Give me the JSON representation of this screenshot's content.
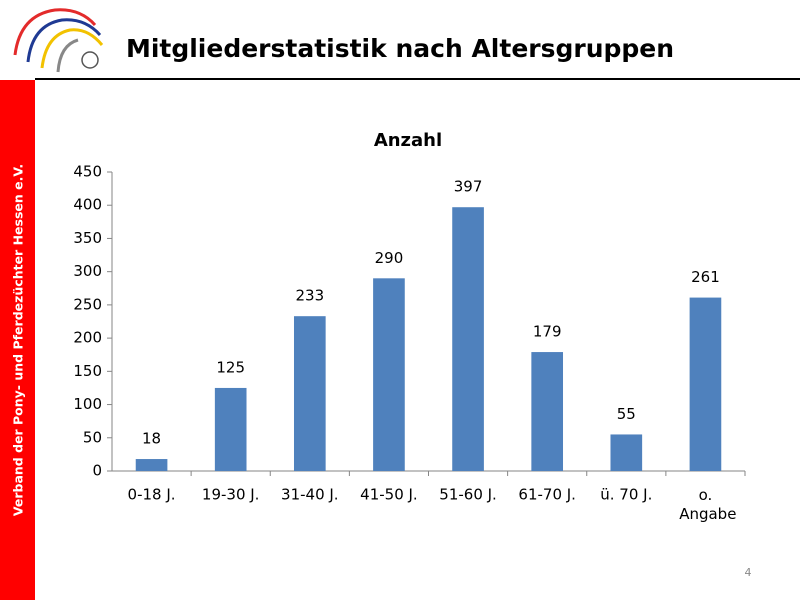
{
  "slide": {
    "title": "Mitgliederstatistik nach Altersgruppen",
    "sidebar": "Verband der Pony- und Pferdezüchter Hessen e.V.",
    "page_number": 4
  },
  "chart_data": {
    "type": "bar",
    "title": "Anzahl",
    "categories": [
      "0-18 J.",
      "19-30 J.",
      "31-40 J.",
      "41-50 J.",
      "51-60 J.",
      "61-70 J.",
      "ü. 70 J.",
      "o. Angabe"
    ],
    "values": [
      18,
      125,
      233,
      290,
      397,
      179,
      55,
      261
    ],
    "color": "#4f81bd",
    "ylim": [
      0,
      450
    ],
    "yticks": [
      0,
      50,
      100,
      150,
      200,
      250,
      300,
      350,
      400,
      450
    ],
    "grid": false
  }
}
